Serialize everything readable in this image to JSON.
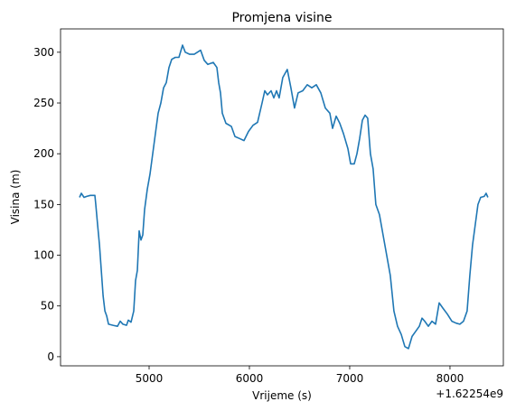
{
  "chart_data": {
    "type": "line",
    "title": "Promjena visine",
    "xlabel": "Vrijeme (s)",
    "ylabel": "Visina (m)",
    "x_offset_label": "+1.62254e9",
    "x": [
      4306,
      4324,
      4351,
      4378,
      4414,
      4459,
      4468,
      4486,
      4505,
      4523,
      4541,
      4559,
      4577,
      4595,
      4640,
      4685,
      4712,
      4739,
      4775,
      4793,
      4820,
      4847,
      4865,
      4883,
      4901,
      4919,
      4937,
      4955,
      4982,
      5009,
      5036,
      5063,
      5090,
      5117,
      5144,
      5171,
      5198,
      5225,
      5261,
      5297,
      5333,
      5360,
      5405,
      5450,
      5514,
      5550,
      5586,
      5640,
      5676,
      5694,
      5712,
      5730,
      5766,
      5820,
      5856,
      5901,
      5946,
      5991,
      6036,
      6081,
      6126,
      6153,
      6180,
      6216,
      6243,
      6270,
      6297,
      6333,
      6378,
      6414,
      6450,
      6486,
      6532,
      6577,
      6622,
      6667,
      6712,
      6757,
      6802,
      6829,
      6865,
      6901,
      6937,
      6982,
      7009,
      7045,
      7072,
      7099,
      7126,
      7153,
      7180,
      7207,
      7234,
      7261,
      7297,
      7333,
      7369,
      7405,
      7441,
      7477,
      7514,
      7550,
      7586,
      7622,
      7658,
      7694,
      7721,
      7748,
      7784,
      7820,
      7856,
      7892,
      7928,
      7973,
      8018,
      8063,
      8099,
      8135,
      8171,
      8198,
      8225,
      8252,
      8279,
      8306,
      8342,
      8360,
      8378
    ],
    "series": [
      {
        "name": "Visina",
        "color": "#1f77b4",
        "values": [
          157,
          161,
          157,
          158,
          159,
          159,
          150,
          130,
          110,
          85,
          60,
          45,
          40,
          32,
          31,
          30,
          35,
          32,
          31,
          36,
          34,
          45,
          75,
          85,
          124,
          115,
          120,
          145,
          165,
          180,
          200,
          220,
          240,
          250,
          265,
          270,
          285,
          293,
          295,
          295,
          307,
          300,
          298,
          298,
          302,
          292,
          288,
          290,
          285,
          270,
          260,
          240,
          230,
          227,
          217,
          215,
          213,
          222,
          228,
          231,
          250,
          262,
          258,
          262,
          255,
          262,
          255,
          275,
          283,
          265,
          245,
          260,
          262,
          268,
          265,
          268,
          260,
          245,
          240,
          225,
          237,
          230,
          220,
          205,
          190,
          190,
          200,
          215,
          233,
          238,
          235,
          200,
          185,
          150,
          140,
          120,
          100,
          80,
          45,
          30,
          22,
          10,
          8,
          20,
          25,
          30,
          38,
          35,
          30,
          35,
          32,
          53,
          48,
          42,
          35,
          33,
          32,
          35,
          45,
          80,
          110,
          130,
          150,
          157,
          158,
          161,
          157
        ]
      }
    ],
    "xlim": [
      4117,
      8532
    ],
    "ylim": [
      -9,
      323
    ],
    "xticks": [
      5000,
      6000,
      7000,
      8000
    ],
    "yticks": [
      0,
      50,
      100,
      150,
      200,
      250,
      300
    ],
    "grid": false
  }
}
